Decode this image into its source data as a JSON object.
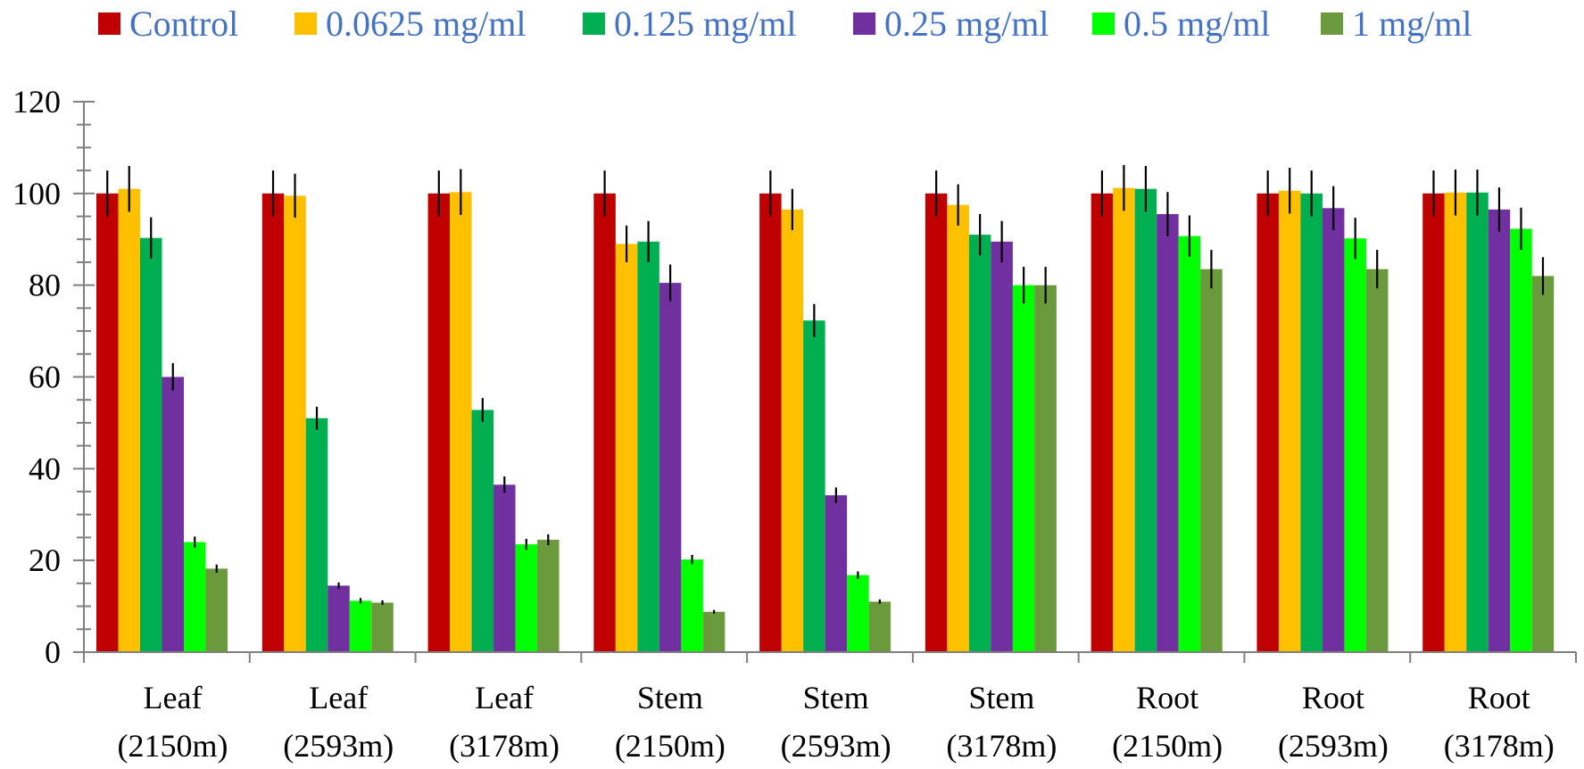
{
  "chart_data": {
    "type": "bar",
    "title": "",
    "xlabel": "",
    "ylabel": "",
    "ylim": [
      0,
      120
    ],
    "yticks": [
      0,
      20,
      40,
      60,
      80,
      100,
      120
    ],
    "yticks_minor_step": 5,
    "grid": false,
    "legend_position": "top",
    "categories": [
      {
        "line1": "Leaf",
        "line2": "(2150m)"
      },
      {
        "line1": "Leaf",
        "line2": "(2593m)"
      },
      {
        "line1": "Leaf",
        "line2": "(3178m)"
      },
      {
        "line1": "Stem",
        "line2": "(2150m)"
      },
      {
        "line1": "Stem",
        "line2": "(2593m)"
      },
      {
        "line1": "Stem",
        "line2": "(3178m)"
      },
      {
        "line1": "Root",
        "line2": "(2150m)"
      },
      {
        "line1": "Root",
        "line2": "(2593m)"
      },
      {
        "line1": "Root",
        "line2": "(3178m)"
      }
    ],
    "series": [
      {
        "name": "Control",
        "color": "#C00000",
        "values": [
          100,
          100,
          100,
          100,
          100,
          100,
          100,
          100,
          100
        ],
        "errors": [
          5,
          5,
          5,
          5,
          5,
          5,
          5,
          5,
          5
        ]
      },
      {
        "name": "0.0625 mg/ml",
        "color": "#FFC000",
        "values": [
          101,
          99.5,
          100.3,
          89,
          96.5,
          97.5,
          101.2,
          100.6,
          100.2
        ],
        "errors": [
          5,
          4.8,
          5,
          4,
          4.5,
          4.5,
          5,
          5,
          5
        ]
      },
      {
        "name": "0.125 mg/ml",
        "color": "#00B050",
        "values": [
          90.3,
          51,
          52.8,
          89.5,
          72.3,
          91,
          101,
          100,
          100.2
        ],
        "errors": [
          4.5,
          2.5,
          2.6,
          4.5,
          3.6,
          4.5,
          5,
          5,
          5
        ]
      },
      {
        "name": "0.25 mg/ml",
        "color": "#7030A0",
        "values": [
          60,
          14.5,
          36.5,
          80.5,
          34.2,
          89.5,
          95.5,
          96.8,
          96.5
        ],
        "errors": [
          3,
          0.7,
          1.8,
          4,
          1.7,
          4.5,
          4.8,
          4.8,
          4.8
        ]
      },
      {
        "name": "0.5 mg/ml",
        "color": "#00FF00",
        "values": [
          24,
          11.2,
          23.5,
          20.2,
          16.8,
          80,
          90.7,
          90.2,
          92.3
        ],
        "errors": [
          1.2,
          0.6,
          1.2,
          1,
          0.8,
          4,
          4.5,
          4.5,
          4.6
        ]
      },
      {
        "name": "1 mg/ml",
        "color": "#6A9A3C",
        "values": [
          18.2,
          10.8,
          24.5,
          8.8,
          11,
          80,
          83.5,
          83.5,
          82
        ],
        "errors": [
          0.9,
          0.5,
          1.2,
          0.4,
          0.5,
          4,
          4.2,
          4.2,
          4.1
        ]
      }
    ]
  }
}
